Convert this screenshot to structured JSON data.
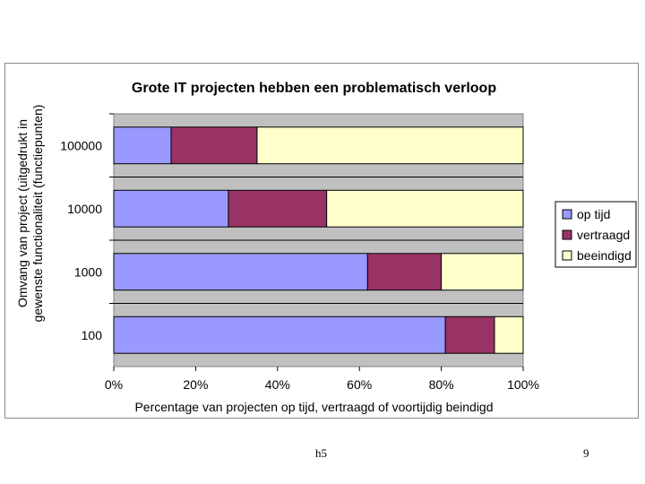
{
  "chart_data": {
    "type": "bar",
    "orientation": "horizontal",
    "stacked": "percent",
    "title": "Grote IT projecten hebben een problematisch verloop",
    "xlabel": "Percentage van projecten op tijd, vertraagd of voortijdig beindigd",
    "ylabel_lines": [
      "Omvang van project (uitgedrukt in",
      "gewenste functionaliteit (functiepunten)"
    ],
    "categories": [
      "100000",
      "10000",
      "1000",
      "100"
    ],
    "series": [
      {
        "name": "op tijd",
        "color": "#9999ff",
        "values": [
          14,
          28,
          62,
          81
        ]
      },
      {
        "name": "vertraagd",
        "color": "#993366",
        "values": [
          21,
          24,
          18,
          12
        ]
      },
      {
        "name": "beeindigd",
        "color": "#ffffcc",
        "values": [
          65,
          48,
          20,
          7
        ]
      }
    ],
    "xlim": [
      0,
      100
    ],
    "xticks": [
      0,
      20,
      40,
      60,
      80,
      100
    ],
    "xtick_labels": [
      "0%",
      "20%",
      "40%",
      "60%",
      "80%",
      "100%"
    ],
    "plot_background": "#c0c0c0",
    "legend_position": "right"
  },
  "footer": {
    "left": "h5",
    "right": "9"
  }
}
